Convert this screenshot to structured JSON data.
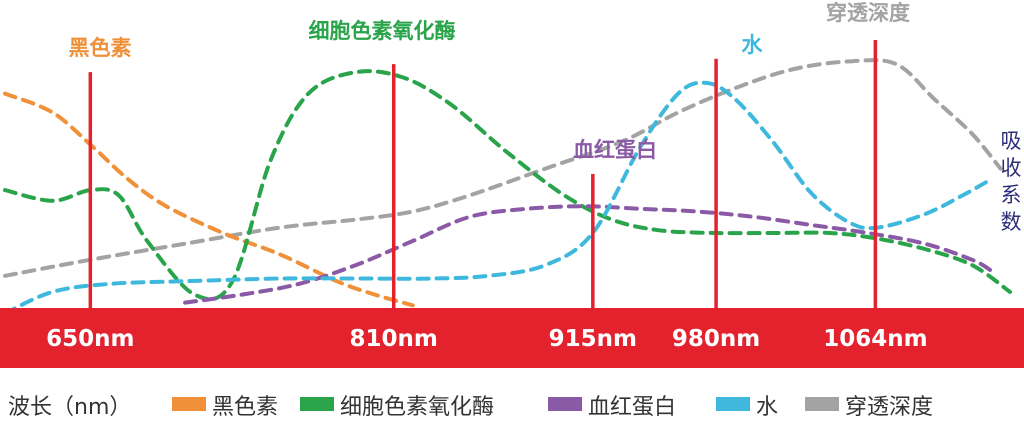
{
  "chart_data": {
    "type": "line",
    "xlabel": "波长（nm）",
    "ylabel": "吸收系数",
    "markers": [
      {
        "value": 650,
        "label": "650nm"
      },
      {
        "value": 810,
        "label": "810nm"
      },
      {
        "value": 915,
        "label": "915nm"
      },
      {
        "value": 980,
        "label": "980nm"
      },
      {
        "value": 1064,
        "label": "1064nm"
      }
    ],
    "series": [
      {
        "name": "黑色素",
        "color": "#f0913a",
        "points": [
          [
            605,
            80
          ],
          [
            630,
            73
          ],
          [
            650,
            61
          ],
          [
            670,
            48
          ],
          [
            690,
            38
          ],
          [
            720,
            28
          ],
          [
            750,
            20
          ],
          [
            780,
            10
          ],
          [
            800,
            5
          ],
          [
            820,
            1
          ]
        ]
      },
      {
        "name": "细胞色素氧化酶",
        "color": "#2aa44b",
        "points": [
          [
            605,
            44
          ],
          [
            630,
            40
          ],
          [
            650,
            44
          ],
          [
            665,
            42
          ],
          [
            680,
            25
          ],
          [
            705,
            5
          ],
          [
            725,
            10
          ],
          [
            745,
            55
          ],
          [
            765,
            80
          ],
          [
            790,
            88
          ],
          [
            815,
            86
          ],
          [
            840,
            76
          ],
          [
            870,
            58
          ],
          [
            900,
            42
          ],
          [
            925,
            33
          ],
          [
            950,
            29
          ],
          [
            980,
            28
          ],
          [
            1010,
            28
          ],
          [
            1040,
            28
          ],
          [
            1064,
            26
          ],
          [
            1090,
            22
          ],
          [
            1115,
            16
          ],
          [
            1135,
            6
          ]
        ]
      },
      {
        "name": "血红蛋白",
        "color": "#8a5aa6",
        "points": [
          [
            700,
            2
          ],
          [
            730,
            5
          ],
          [
            760,
            9
          ],
          [
            790,
            16
          ],
          [
            820,
            25
          ],
          [
            850,
            34
          ],
          [
            880,
            37
          ],
          [
            910,
            38
          ],
          [
            940,
            37
          ],
          [
            970,
            36
          ],
          [
            1000,
            34
          ],
          [
            1030,
            31
          ],
          [
            1060,
            28
          ],
          [
            1090,
            24
          ],
          [
            1115,
            18
          ],
          [
            1125,
            14
          ]
        ]
      },
      {
        "name": "水",
        "color": "#3fb8de",
        "points": [
          [
            605,
            -2
          ],
          [
            630,
            6
          ],
          [
            660,
            9
          ],
          [
            700,
            10
          ],
          [
            750,
            11
          ],
          [
            790,
            11
          ],
          [
            830,
            11
          ],
          [
            860,
            12
          ],
          [
            890,
            16
          ],
          [
            915,
            28
          ],
          [
            940,
            60
          ],
          [
            960,
            80
          ],
          [
            975,
            84
          ],
          [
            990,
            78
          ],
          [
            1010,
            62
          ],
          [
            1030,
            43
          ],
          [
            1050,
            32
          ],
          [
            1065,
            30
          ],
          [
            1090,
            35
          ],
          [
            1110,
            42
          ],
          [
            1125,
            48
          ]
        ]
      },
      {
        "name": "穿透深度",
        "color": "#a3a3a3",
        "points": [
          [
            605,
            12
          ],
          [
            650,
            18
          ],
          [
            700,
            24
          ],
          [
            750,
            30
          ],
          [
            790,
            33
          ],
          [
            820,
            36
          ],
          [
            850,
            42
          ],
          [
            890,
            52
          ],
          [
            930,
            62
          ],
          [
            960,
            73
          ],
          [
            990,
            82
          ],
          [
            1020,
            89
          ],
          [
            1050,
            92
          ],
          [
            1075,
            91
          ],
          [
            1095,
            78
          ],
          [
            1115,
            65
          ],
          [
            1130,
            52
          ]
        ]
      }
    ]
  },
  "legend_title": "波长（nm）"
}
